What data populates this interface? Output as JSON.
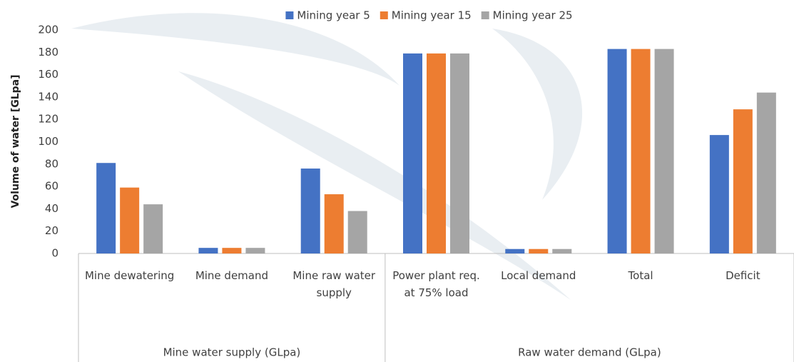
{
  "chart_data": {
    "type": "bar",
    "y_label": "Volume of water [GLpa]",
    "category_groups": [
      {
        "label": "Mine water supply (GLpa)",
        "categories": [
          "Mine dewatering",
          "Mine demand",
          "Mine raw water supply"
        ]
      },
      {
        "label": "Raw water demand (GLpa)",
        "categories": [
          "Power plant req. at 75% load",
          "Local demand",
          "Total",
          "Deficit"
        ]
      }
    ],
    "series": [
      {
        "name": "Mining year 5",
        "color": "#4472c4",
        "values": [
          81,
          5,
          76,
          179,
          4,
          183,
          106
        ]
      },
      {
        "name": "Mining year 15",
        "color": "#ed7d31",
        "values": [
          59,
          5,
          53,
          179,
          4,
          183,
          129
        ]
      },
      {
        "name": "Mining year 25",
        "color": "#a5a5a5",
        "values": [
          44,
          5,
          38,
          179,
          4,
          183,
          144
        ]
      }
    ],
    "ylim": [
      0,
      200
    ],
    "yticks": [
      0,
      20,
      40,
      60,
      80,
      100,
      120,
      140,
      160,
      180,
      200
    ],
    "legend": "top"
  }
}
